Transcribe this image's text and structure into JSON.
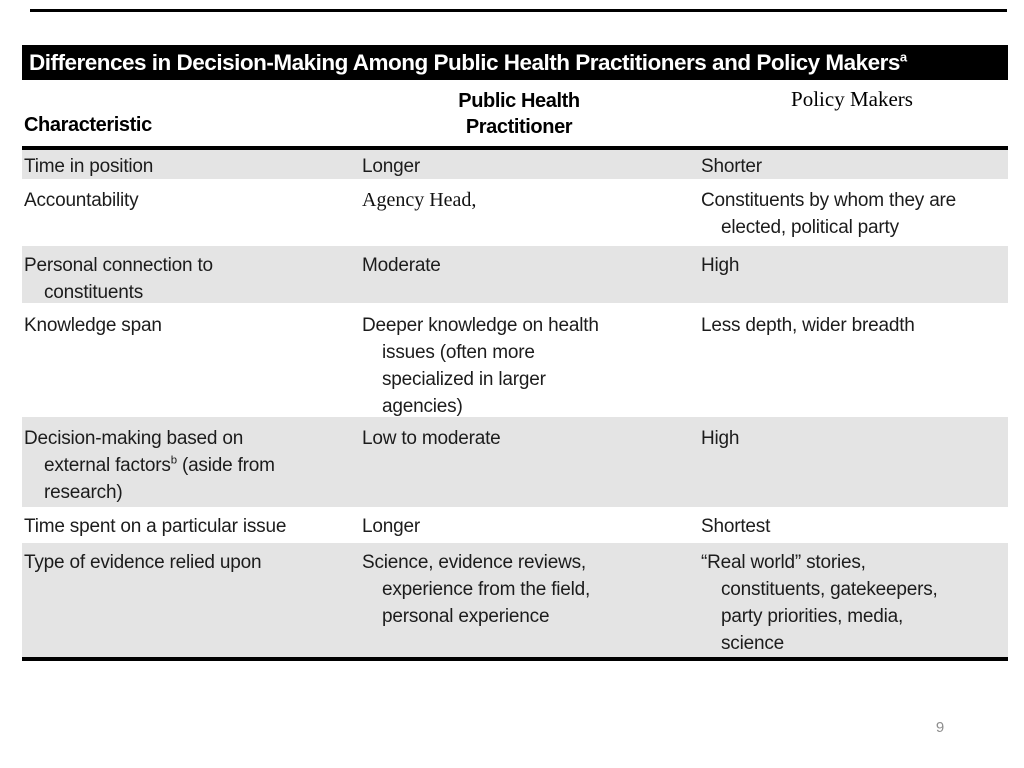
{
  "slide": {
    "page_number": "9"
  },
  "table": {
    "title": {
      "text": "Differences in Decision-Making Among Public Health Practitioners and Policy Makers",
      "sup": "a"
    },
    "header": {
      "characteristic": "Characteristic",
      "public_health_line1": "Public Health",
      "public_health_line2": "Practitioner",
      "policy_makers": "Policy Makers"
    },
    "colors": {
      "row_shade": "#e4e4e4",
      "title_bar": "#000000",
      "page_number": "#8e8e8e"
    },
    "rows": [
      {
        "characteristic": [
          "Time in position"
        ],
        "practitioner": [
          "Longer"
        ],
        "policy": [
          "Shorter"
        ]
      },
      {
        "characteristic": [
          "Accountability"
        ],
        "practitioner": [
          "Agency Head,"
        ],
        "policy": [
          "Constituents by whom they are",
          "elected, political party"
        ]
      },
      {
        "characteristic": [
          "Personal connection to",
          "constituents"
        ],
        "practitioner": [
          "Moderate"
        ],
        "policy": [
          "High"
        ]
      },
      {
        "characteristic": [
          "Knowledge span"
        ],
        "practitioner": [
          "Deeper knowledge on health",
          "issues (often more",
          "specialized in larger",
          "agencies)"
        ],
        "policy": [
          "Less depth, wider breadth"
        ]
      },
      {
        "characteristic": {
          "line1": "Decision-making based on",
          "line2_pre": "external factors",
          "line2_sup": "b",
          "line2_post": "(aside from",
          "line3": "research)"
        },
        "practitioner": [
          "Low to moderate"
        ],
        "policy": [
          "High"
        ]
      },
      {
        "characteristic": [
          "Time spent on a particular issue"
        ],
        "practitioner": [
          "Longer"
        ],
        "policy": [
          "Shortest"
        ]
      },
      {
        "characteristic": [
          "Type of evidence relied upon"
        ],
        "practitioner": [
          "Science, evidence reviews,",
          "experience from the field,",
          "personal experience"
        ],
        "policy": [
          "“Real world” stories,",
          "constituents, gatekeepers,",
          "party priorities, media,",
          "science"
        ]
      }
    ]
  }
}
